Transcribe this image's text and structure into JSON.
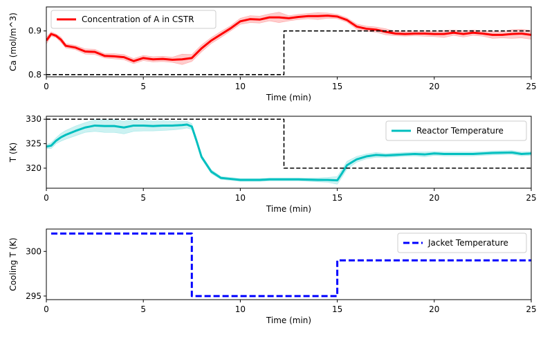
{
  "chart_data": [
    {
      "type": "line",
      "xlabel": "Time (min)",
      "ylabel": "Ca (mol/m^3)",
      "xlim": [
        0,
        25
      ],
      "ylim": [
        0.795,
        0.955
      ],
      "xticks": [
        0,
        5,
        10,
        15,
        20,
        25
      ],
      "yticks": [
        0.8,
        0.9
      ],
      "ytick_labels": [
        "0.8",
        "0.9"
      ],
      "grid": false,
      "legend_placement": "upper left",
      "series": [
        {
          "name": "Concentration of A in CSTR",
          "color": "#ff0000",
          "style": "solid",
          "band_color": "#ff9999",
          "band_halfwidth": [
            0.008,
            0.005,
            0.004,
            0.006,
            0.005,
            0.005,
            0.006,
            0.006,
            0.005,
            0.006,
            0.006,
            0.006,
            0.006,
            0.006,
            0.006,
            0.006,
            0.012,
            0.008,
            0.008,
            0.007,
            0.007,
            0.006,
            0.007,
            0.008,
            0.008,
            0.008,
            0.012,
            0.006,
            0.006,
            0.006,
            0.008,
            0.006,
            0.005,
            0.005,
            0.006,
            0.006,
            0.006,
            0.007,
            0.005,
            0.005,
            0.005,
            0.006,
            0.006,
            0.008,
            0.006,
            0.007,
            0.006,
            0.006,
            0.008,
            0.007,
            0.01,
            0.01,
            0.01
          ],
          "x": [
            0,
            0.25,
            0.5,
            0.75,
            1,
            1.5,
            2,
            2.5,
            3,
            3.5,
            4,
            4.5,
            5,
            5.5,
            6,
            6.5,
            7,
            7.5,
            8,
            8.5,
            9,
            9.5,
            10,
            10.5,
            11,
            11.5,
            12,
            12.5,
            13,
            13.5,
            14,
            14.5,
            15,
            15.5,
            16,
            16.5,
            17,
            17.5,
            18,
            18.5,
            19,
            19.5,
            20,
            20.5,
            21,
            21.5,
            22,
            22.5,
            23,
            23.5,
            24,
            24.5,
            25
          ],
          "y": [
            0.878,
            0.893,
            0.889,
            0.88,
            0.866,
            0.862,
            0.853,
            0.852,
            0.843,
            0.842,
            0.84,
            0.831,
            0.838,
            0.835,
            0.836,
            0.834,
            0.835,
            0.838,
            0.86,
            0.878,
            0.892,
            0.906,
            0.922,
            0.927,
            0.926,
            0.931,
            0.931,
            0.929,
            0.932,
            0.934,
            0.934,
            0.935,
            0.933,
            0.925,
            0.91,
            0.905,
            0.903,
            0.898,
            0.894,
            0.893,
            0.894,
            0.894,
            0.893,
            0.893,
            0.896,
            0.893,
            0.896,
            0.894,
            0.891,
            0.891,
            0.893,
            0.894,
            0.891
          ]
        },
        {
          "name": "",
          "color": "#000000",
          "style": "dashed",
          "step": true,
          "x": [
            0,
            12.25,
            12.25,
            25
          ],
          "y": [
            0.8,
            0.8,
            0.9,
            0.9
          ]
        }
      ]
    },
    {
      "type": "line",
      "xlabel": "Time (min)",
      "ylabel": "T (K)",
      "xlim": [
        0,
        25
      ],
      "ylim": [
        315.9,
        330.6
      ],
      "xticks": [
        0,
        5,
        10,
        15,
        20,
        25
      ],
      "yticks": [
        320,
        325,
        330
      ],
      "ytick_labels": [
        "320",
        "325",
        "330"
      ],
      "grid": false,
      "legend_placement": "upper right",
      "series": [
        {
          "name": "Reactor Temperature",
          "color": "#00bfbf",
          "style": "solid",
          "band_color": "#99e6e6",
          "band_halfwidth": [
            0.4,
            0.6,
            0.6,
            0.8,
            0.9,
            1.0,
            1.0,
            1.2,
            1.3,
            1.3,
            1.3,
            1.2,
            1.1,
            1.0,
            1.0,
            0.9,
            0.8,
            0.7,
            0.6,
            0.5,
            0.4,
            0.4,
            0.3,
            0.3,
            0.3,
            0.3,
            0.3,
            0.3,
            0.3,
            0.3,
            0.3,
            0.4,
            0.5,
            0.8,
            0.8,
            0.8,
            0.6,
            0.5,
            0.5,
            0.4,
            0.4,
            0.4,
            0.4,
            0.5,
            0.4,
            0.4,
            0.4,
            0.4,
            0.4,
            0.4,
            0.4,
            0.4
          ],
          "x": [
            0,
            0.25,
            0.5,
            0.75,
            1,
            1.5,
            2,
            2.5,
            3,
            3.5,
            4,
            4.5,
            5,
            5.5,
            6,
            6.5,
            7,
            7.25,
            7.5,
            7.75,
            8,
            8.5,
            9,
            9.5,
            10,
            10.5,
            11,
            11.5,
            12,
            12.5,
            13,
            14,
            14.5,
            15,
            15.25,
            15.5,
            16,
            16.5,
            17,
            17.5,
            18,
            18.5,
            19,
            19.5,
            20,
            20.5,
            21,
            22,
            23,
            24,
            24.5,
            25
          ],
          "y": [
            324.4,
            324.6,
            325.6,
            326.3,
            326.8,
            327.6,
            328.3,
            328.7,
            328.6,
            328.6,
            328.3,
            328.7,
            328.7,
            328.6,
            328.7,
            328.7,
            328.8,
            328.9,
            328.5,
            325.5,
            322.3,
            319.3,
            318.0,
            317.8,
            317.6,
            317.6,
            317.6,
            317.7,
            317.7,
            317.7,
            317.7,
            317.6,
            317.6,
            317.5,
            319.0,
            320.6,
            321.8,
            322.4,
            322.7,
            322.6,
            322.7,
            322.8,
            322.9,
            322.8,
            323.0,
            322.9,
            322.9,
            322.9,
            323.1,
            323.2,
            322.9,
            323.0
          ]
        },
        {
          "name": "",
          "color": "#000000",
          "style": "dashed",
          "step": true,
          "x": [
            0,
            12.25,
            12.25,
            25
          ],
          "y": [
            330,
            330,
            320,
            320
          ]
        }
      ]
    },
    {
      "type": "line",
      "xlabel": "Time (min)",
      "ylabel": "Cooling T (K)",
      "xlim": [
        0,
        25
      ],
      "ylim": [
        294.6,
        302.5
      ],
      "xticks": [
        0,
        5,
        10,
        15,
        20,
        25
      ],
      "yticks": [
        295,
        300
      ],
      "ytick_labels": [
        "295",
        "300"
      ],
      "grid": false,
      "legend_placement": "upper right",
      "series": [
        {
          "name": "Jacket Temperature",
          "color": "#0000ff",
          "style": "dashed",
          "step": true,
          "x": [
            0.25,
            7.5,
            7.5,
            15,
            15,
            25
          ],
          "y": [
            302,
            302,
            295,
            295,
            299,
            299
          ]
        }
      ]
    }
  ]
}
